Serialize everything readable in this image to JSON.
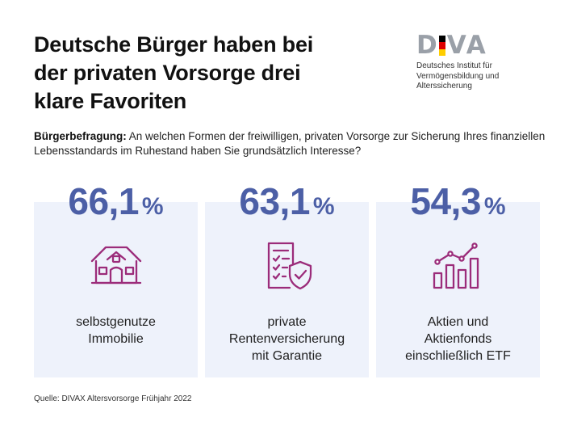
{
  "title": {
    "line1": "Deutsche Bürger haben bei",
    "line2": "der privaten Vorsorge drei",
    "line3": "klare Favoriten"
  },
  "logo": {
    "letters": [
      "D",
      "V",
      "A"
    ],
    "flag_colors": [
      "#000000",
      "#dd0000",
      "#ffce00"
    ],
    "subtitle_line1": "Deutsches Institut für",
    "subtitle_line2": "Vermögensbildung und Alterssicherung"
  },
  "question": {
    "label": "Bürgerbefragung:",
    "text": "An welchen Formen der freiwilligen, privaten Vorsorge zur Sicherung Ihres finanziellen Lebensstandards im Ruhestand haben Sie grundsätzlich Interesse?"
  },
  "colors": {
    "accent": "#4c5fa6",
    "icon": "#9b2c7a",
    "card_bg": "#eef2fb"
  },
  "chart_data": {
    "type": "bar",
    "unit": "%",
    "categories": [
      "selbstgenutze Immobilie",
      "private Rentenversicherung mit Garantie",
      "Aktien und Aktienfonds einschließlich ETF"
    ],
    "values": [
      66.1,
      63.1,
      54.3
    ],
    "value_labels": [
      "66,1",
      "63,1",
      "54,3"
    ]
  },
  "cards": [
    {
      "value": "66,1",
      "unit": "%",
      "icon": "house-icon",
      "label_lines": [
        "selbstgenutze",
        "Immobilie",
        ""
      ]
    },
    {
      "value": "63,1",
      "unit": "%",
      "icon": "document-shield-icon",
      "label_lines": [
        "private",
        "Rentenversicherung",
        "mit Garantie"
      ]
    },
    {
      "value": "54,3",
      "unit": "%",
      "icon": "stock-chart-icon",
      "label_lines": [
        "Aktien und",
        "Aktienfonds",
        "einschließlich ETF"
      ]
    }
  ],
  "source": "Quelle: DIVAX Altersvorsorge Frühjahr 2022"
}
